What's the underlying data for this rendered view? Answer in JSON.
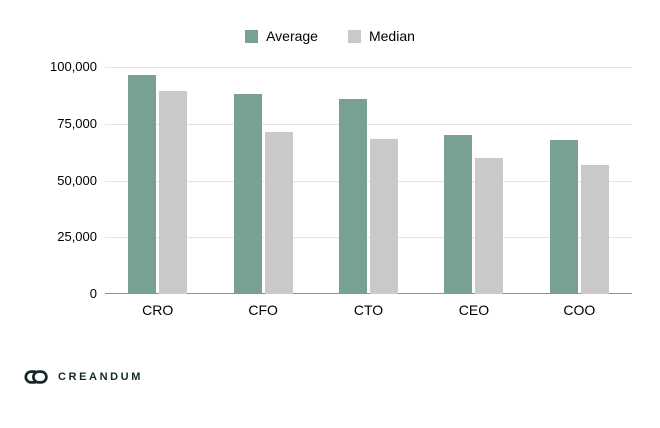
{
  "chart_data": {
    "type": "bar",
    "categories": [
      "CRO",
      "CFO",
      "CTO",
      "CEO",
      "COO"
    ],
    "series": [
      {
        "name": "Average",
        "color": "#78a095",
        "values": [
          96500,
          88000,
          86000,
          70000,
          68000
        ]
      },
      {
        "name": "Median",
        "color": "#c9c9c9",
        "values": [
          89500,
          71500,
          68500,
          60000,
          57000
        ]
      }
    ],
    "title": "",
    "xlabel": "",
    "ylabel": "",
    "ylim": [
      0,
      100000
    ],
    "yticks": [
      0,
      25000,
      50000,
      75000,
      100000
    ],
    "ytick_labels": [
      "0",
      "25,000",
      "50,000",
      "75,000",
      "100,000"
    ],
    "grid": true,
    "legend_position": "top-center"
  },
  "footer": {
    "brand": "CREANDUM",
    "icon": "chain-link-icon"
  },
  "colors": {
    "average": "#78a095",
    "median": "#c9c9c9",
    "gridline": "#e4e4e4",
    "axis": "#8f8f8f",
    "text": "#000000",
    "brand_text": "#15282a",
    "background": "#ffffff"
  }
}
